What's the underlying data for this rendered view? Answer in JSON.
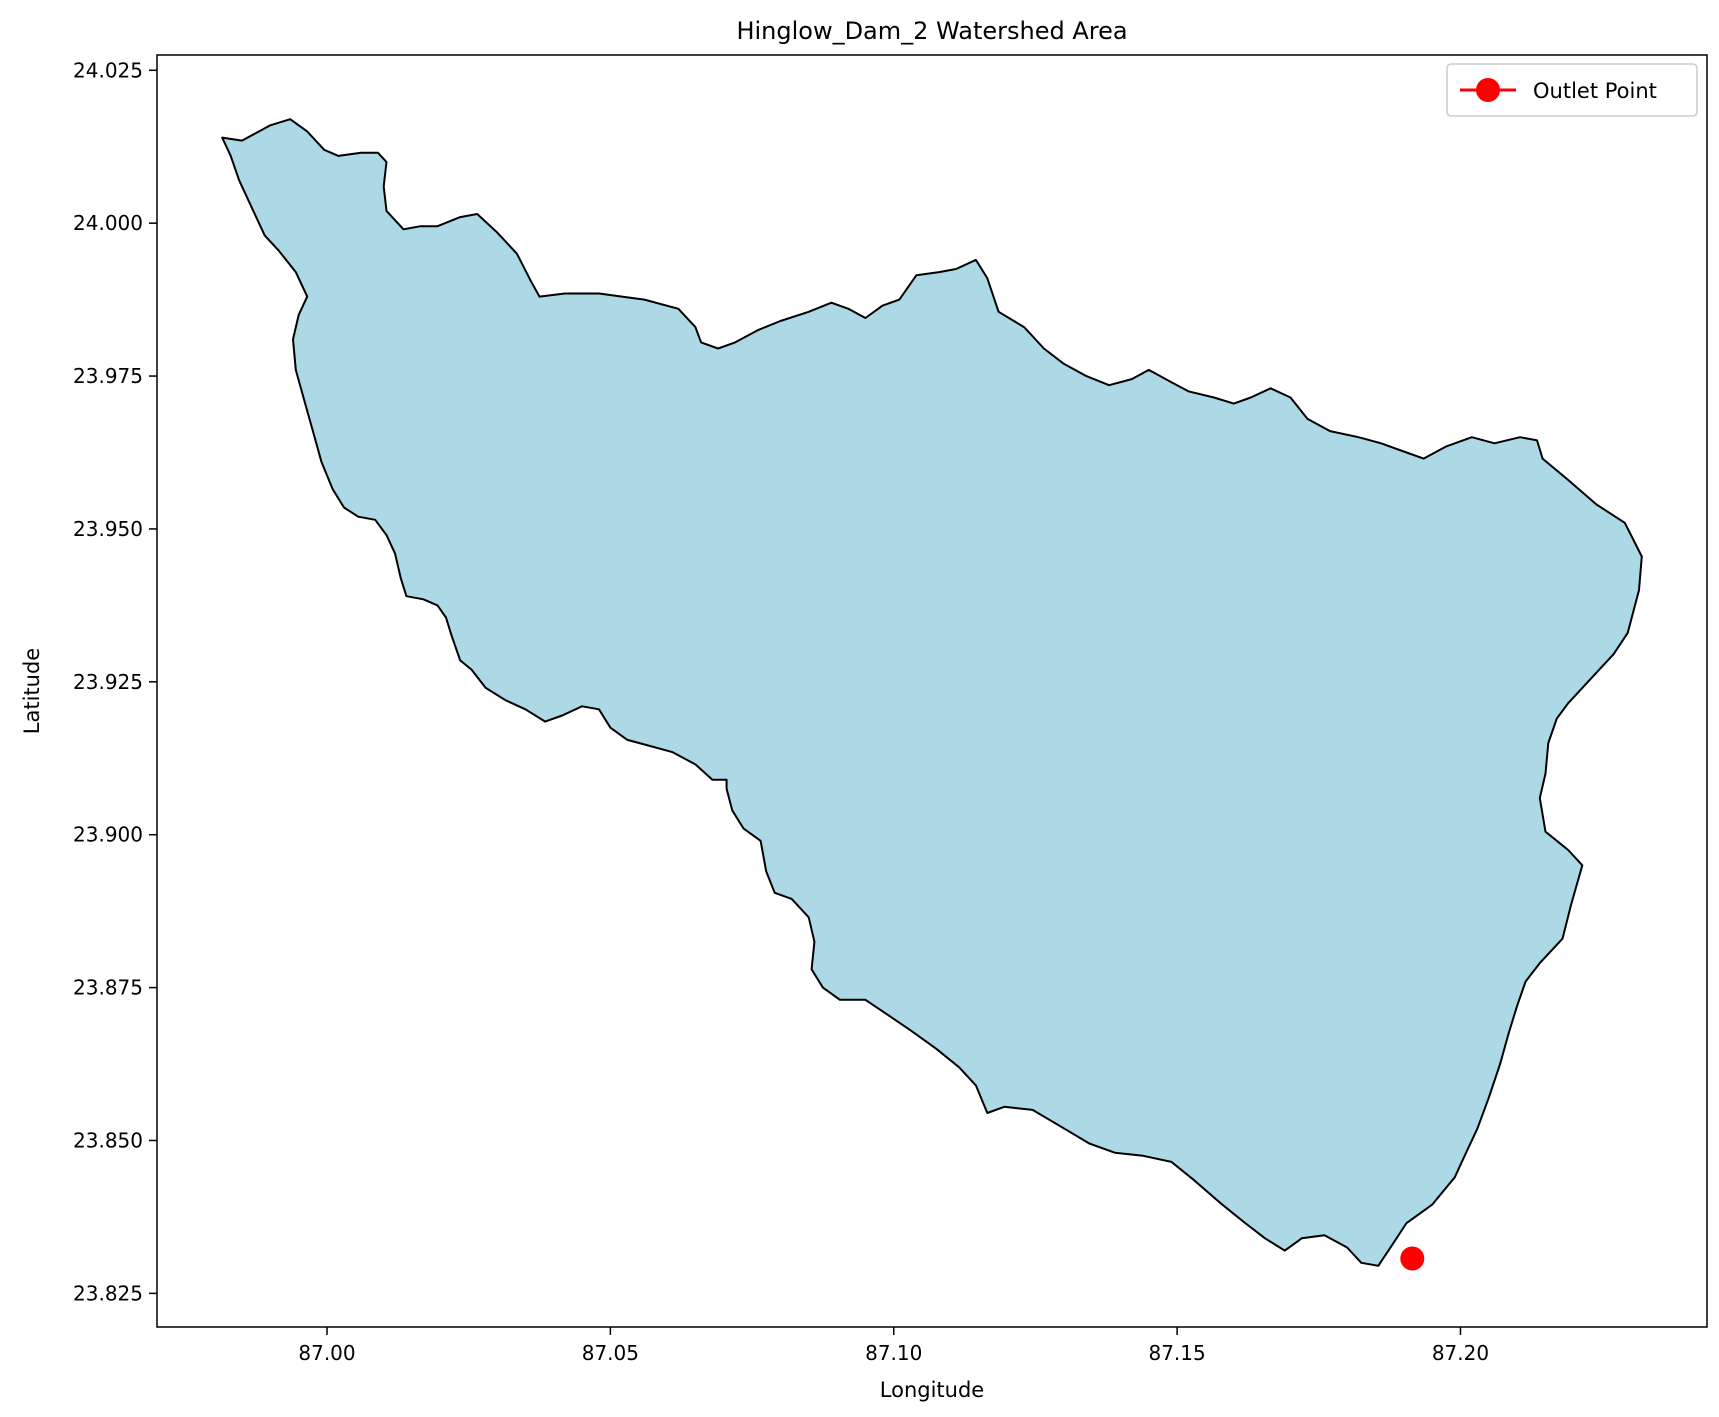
{
  "chart_data": {
    "type": "map",
    "title": "Hinglow_Dam_2 Watershed Area",
    "xlabel": "Longitude",
    "ylabel": "Latitude",
    "xlim": [
      86.97,
      87.2435
    ],
    "ylim": [
      23.8195,
      24.0275
    ],
    "xticks": [
      87.0,
      87.05,
      87.1,
      87.15,
      87.2
    ],
    "xtick_labels": [
      "87.00",
      "87.05",
      "87.10",
      "87.15",
      "87.20"
    ],
    "yticks": [
      23.825,
      23.85,
      23.875,
      23.9,
      23.925,
      23.95,
      23.975,
      24.0,
      24.025
    ],
    "ytick_labels": [
      "23.825",
      "23.850",
      "23.875",
      "23.900",
      "23.925",
      "23.950",
      "23.975",
      "24.000",
      "24.025"
    ],
    "grid": false,
    "legend_position": "top-right",
    "watershed": {
      "fill_color": "#add8e6",
      "edge_color": "#000000",
      "boundary": [
        [
          86.9815,
          24.014
        ],
        [
          86.985,
          24.0135
        ],
        [
          86.99,
          24.016
        ],
        [
          86.9935,
          24.017
        ],
        [
          86.9965,
          24.015
        ],
        [
          86.9995,
          24.012
        ],
        [
          87.002,
          24.011
        ],
        [
          87.006,
          24.0115
        ],
        [
          87.009,
          24.0115
        ],
        [
          87.0105,
          24.01
        ],
        [
          87.01,
          24.006
        ],
        [
          87.0105,
          24.002
        ],
        [
          87.0135,
          23.999
        ],
        [
          87.0165,
          23.9995
        ],
        [
          87.0195,
          23.9995
        ],
        [
          87.0235,
          24.001
        ],
        [
          87.0265,
          24.0015
        ],
        [
          87.03,
          23.9985
        ],
        [
          87.0335,
          23.995
        ],
        [
          87.036,
          23.9905
        ],
        [
          87.0375,
          23.988
        ],
        [
          87.042,
          23.9885
        ],
        [
          87.048,
          23.9885
        ],
        [
          87.056,
          23.9875
        ],
        [
          87.062,
          23.986
        ],
        [
          87.065,
          23.983
        ],
        [
          87.066,
          23.9805
        ],
        [
          87.069,
          23.9795
        ],
        [
          87.072,
          23.9805
        ],
        [
          87.076,
          23.9825
        ],
        [
          87.08,
          23.984
        ],
        [
          87.085,
          23.9855
        ],
        [
          87.089,
          23.987
        ],
        [
          87.092,
          23.986
        ],
        [
          87.095,
          23.9845
        ],
        [
          87.098,
          23.9865
        ],
        [
          87.101,
          23.9875
        ],
        [
          87.104,
          23.9915
        ],
        [
          87.108,
          23.992
        ],
        [
          87.111,
          23.9925
        ],
        [
          87.1145,
          23.994
        ],
        [
          87.1165,
          23.991
        ],
        [
          87.1185,
          23.9855
        ],
        [
          87.123,
          23.983
        ],
        [
          87.1265,
          23.9795
        ],
        [
          87.13,
          23.977
        ],
        [
          87.134,
          23.975
        ],
        [
          87.138,
          23.9735
        ],
        [
          87.142,
          23.9745
        ],
        [
          87.145,
          23.976
        ],
        [
          87.149,
          23.974
        ],
        [
          87.152,
          23.9725
        ],
        [
          87.1565,
          23.9715
        ],
        [
          87.16,
          23.9705
        ],
        [
          87.163,
          23.9715
        ],
        [
          87.1665,
          23.973
        ],
        [
          87.17,
          23.9715
        ],
        [
          87.173,
          23.968
        ],
        [
          87.177,
          23.966
        ],
        [
          87.182,
          23.965
        ],
        [
          87.186,
          23.964
        ],
        [
          87.1905,
          23.9625
        ],
        [
          87.1935,
          23.9615
        ],
        [
          87.1975,
          23.9635
        ],
        [
          87.202,
          23.965
        ],
        [
          87.206,
          23.964
        ],
        [
          87.2105,
          23.965
        ],
        [
          87.2135,
          23.9645
        ],
        [
          87.2145,
          23.9615
        ],
        [
          87.219,
          23.958
        ],
        [
          87.224,
          23.954
        ],
        [
          87.229,
          23.951
        ],
        [
          87.232,
          23.9455
        ],
        [
          87.2315,
          23.94
        ],
        [
          87.2295,
          23.933
        ],
        [
          87.227,
          23.9295
        ],
        [
          87.2245,
          23.927
        ],
        [
          87.2215,
          23.924
        ],
        [
          87.219,
          23.9215
        ],
        [
          87.217,
          23.919
        ],
        [
          87.2155,
          23.915
        ],
        [
          87.215,
          23.91
        ],
        [
          87.214,
          23.906
        ],
        [
          87.215,
          23.9005
        ],
        [
          87.219,
          23.8975
        ],
        [
          87.2215,
          23.895
        ],
        [
          87.2195,
          23.8885
        ],
        [
          87.218,
          23.883
        ],
        [
          87.214,
          23.879
        ],
        [
          87.2115,
          23.876
        ],
        [
          87.21,
          23.872
        ],
        [
          87.2085,
          23.8675
        ],
        [
          87.207,
          23.8625
        ],
        [
          87.205,
          23.857
        ],
        [
          87.203,
          23.852
        ],
        [
          87.201,
          23.848
        ],
        [
          87.199,
          23.844
        ],
        [
          87.195,
          23.8395
        ],
        [
          87.1905,
          23.8365
        ],
        [
          87.188,
          23.833
        ],
        [
          87.1855,
          23.8295
        ],
        [
          87.1825,
          23.83
        ],
        [
          87.18,
          23.8325
        ],
        [
          87.176,
          23.8345
        ],
        [
          87.172,
          23.834
        ],
        [
          87.169,
          23.832
        ],
        [
          87.1655,
          23.834
        ],
        [
          87.162,
          23.8365
        ],
        [
          87.158,
          23.8395
        ],
        [
          87.153,
          23.8435
        ],
        [
          87.149,
          23.8465
        ],
        [
          87.144,
          23.8475
        ],
        [
          87.139,
          23.848
        ],
        [
          87.1345,
          23.8495
        ],
        [
          87.13,
          23.852
        ],
        [
          87.1245,
          23.855
        ],
        [
          87.1195,
          23.8555
        ],
        [
          87.1165,
          23.8545
        ],
        [
          87.1145,
          23.859
        ],
        [
          87.1115,
          23.862
        ],
        [
          87.1075,
          23.865
        ],
        [
          87.103,
          23.868
        ],
        [
          87.099,
          23.8705
        ],
        [
          87.095,
          23.873
        ],
        [
          87.0905,
          23.873
        ],
        [
          87.0875,
          23.875
        ],
        [
          87.0855,
          23.878
        ],
        [
          87.086,
          23.8825
        ],
        [
          87.085,
          23.8865
        ],
        [
          87.082,
          23.8895
        ],
        [
          87.079,
          23.8905
        ],
        [
          87.0775,
          23.894
        ],
        [
          87.0765,
          23.899
        ],
        [
          87.0735,
          23.901
        ],
        [
          87.0715,
          23.904
        ],
        [
          87.0705,
          23.9075
        ],
        [
          87.0705,
          23.909
        ],
        [
          87.068,
          23.909
        ],
        [
          87.065,
          23.9115
        ],
        [
          87.061,
          23.9135
        ],
        [
          87.057,
          23.9145
        ],
        [
          87.053,
          23.9155
        ],
        [
          87.05,
          23.9175
        ],
        [
          87.048,
          23.9205
        ],
        [
          87.045,
          23.921
        ],
        [
          87.0415,
          23.9195
        ],
        [
          87.0385,
          23.9185
        ],
        [
          87.035,
          23.9205
        ],
        [
          87.0315,
          23.922
        ],
        [
          87.028,
          23.924
        ],
        [
          87.0255,
          23.927
        ],
        [
          87.0235,
          23.9285
        ],
        [
          87.022,
          23.9325
        ],
        [
          87.021,
          23.9355
        ],
        [
          87.0195,
          23.9375
        ],
        [
          87.017,
          23.9385
        ],
        [
          87.014,
          23.939
        ],
        [
          87.013,
          23.942
        ],
        [
          87.012,
          23.946
        ],
        [
          87.0105,
          23.949
        ],
        [
          87.0085,
          23.9515
        ],
        [
          87.0055,
          23.952
        ],
        [
          87.003,
          23.9535
        ],
        [
          87.001,
          23.9565
        ],
        [
          86.999,
          23.961
        ],
        [
          86.9975,
          23.966
        ],
        [
          86.996,
          23.971
        ],
        [
          86.9945,
          23.976
        ],
        [
          86.994,
          23.981
        ],
        [
          86.995,
          23.985
        ],
        [
          86.9965,
          23.988
        ],
        [
          86.9945,
          23.992
        ],
        [
          86.9915,
          23.9955
        ],
        [
          86.989,
          23.998
        ],
        [
          86.987,
          24.002
        ],
        [
          86.9845,
          24.007
        ],
        [
          86.983,
          24.011
        ],
        [
          86.9815,
          24.014
        ]
      ]
    },
    "series": [
      {
        "name": "Outlet Point",
        "type": "marker",
        "color": "#ff0000",
        "x": [
          87.1915
        ],
        "y": [
          23.8307
        ]
      }
    ]
  }
}
